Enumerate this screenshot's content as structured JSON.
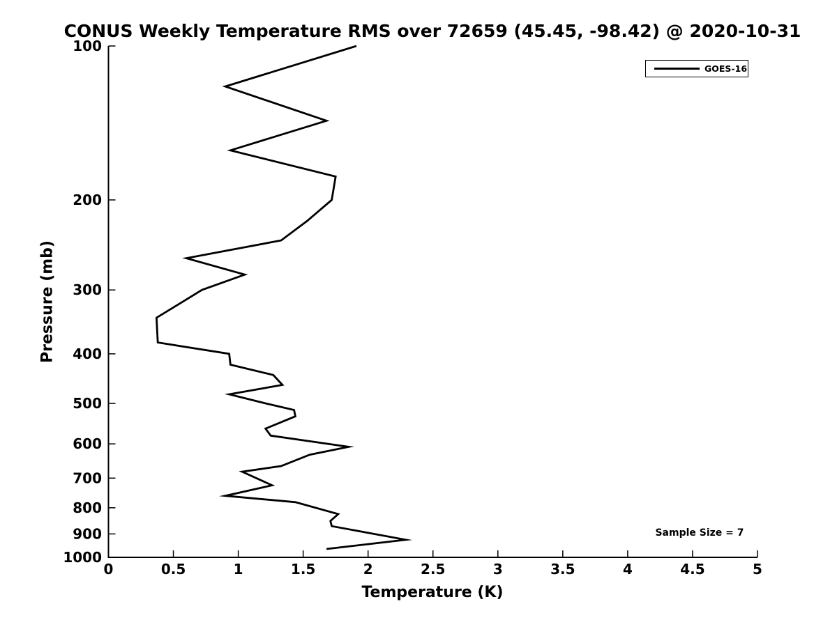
{
  "chart_data": {
    "type": "line",
    "title": "CONUS Weekly Temperature RMS over 72659 (45.45, -98.42) @ 2020-10-31",
    "xlabel": "Temperature (K)",
    "ylabel": "Pressure (mb)",
    "xlim": [
      0,
      5
    ],
    "ylim": [
      100,
      1000
    ],
    "x_scale": "linear",
    "y_scale": "log",
    "y_axis_direction": "inverted",
    "grid": false,
    "x_ticks": [
      0,
      0.5,
      1,
      1.5,
      2,
      2.5,
      3,
      3.5,
      4,
      4.5,
      5
    ],
    "x_tick_labels": [
      "0",
      "0.5",
      "1",
      "1.5",
      "2",
      "2.5",
      "3",
      "3.5",
      "4",
      "4.5",
      "5"
    ],
    "y_ticks": [
      100,
      200,
      300,
      400,
      500,
      600,
      700,
      800,
      900,
      1000
    ],
    "y_tick_labels": [
      "100",
      "200",
      "300",
      "400",
      "500",
      "600",
      "700",
      "800",
      "900",
      "1000"
    ],
    "legend": {
      "position": "top-right",
      "entries": [
        "GOES-16"
      ]
    },
    "annotations": [
      "Sample Size = 7"
    ],
    "point_format": "[temperature_rms_K, pressure_mb]",
    "series": [
      {
        "name": "GOES-16",
        "color": "#000000",
        "line_width": 2.8,
        "points": [
          [
            1.91,
            100
          ],
          [
            0.9,
            120
          ],
          [
            1.68,
            140
          ],
          [
            0.94,
            160
          ],
          [
            1.75,
            180
          ],
          [
            1.72,
            200
          ],
          [
            1.53,
            220
          ],
          [
            1.33,
            240
          ],
          [
            0.6,
            260
          ],
          [
            1.05,
            280
          ],
          [
            0.72,
            300
          ],
          [
            0.37,
            340
          ],
          [
            0.38,
            380
          ],
          [
            0.93,
            400
          ],
          [
            0.94,
            420
          ],
          [
            1.27,
            440
          ],
          [
            1.34,
            460
          ],
          [
            0.93,
            480
          ],
          [
            1.21,
            500
          ],
          [
            1.43,
            515
          ],
          [
            1.44,
            530
          ],
          [
            1.21,
            560
          ],
          [
            1.25,
            578
          ],
          [
            1.85,
            608
          ],
          [
            1.55,
            630
          ],
          [
            1.33,
            663
          ],
          [
            1.03,
            680
          ],
          [
            1.26,
            723
          ],
          [
            0.9,
            758
          ],
          [
            1.44,
            780
          ],
          [
            1.77,
            823
          ],
          [
            1.71,
            849
          ],
          [
            1.72,
            869
          ],
          [
            2.29,
            924
          ],
          [
            1.68,
            963
          ]
        ]
      }
    ]
  }
}
